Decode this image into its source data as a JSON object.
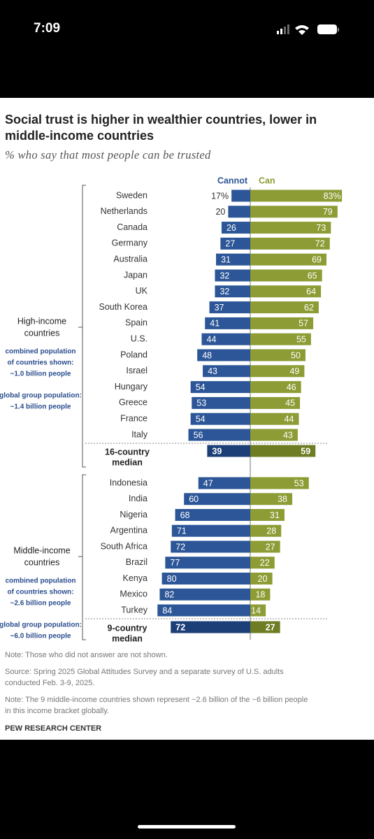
{
  "status_bar": {
    "time": "7:09"
  },
  "chart_data": {
    "type": "diverging_bar",
    "title": "Social trust is higher in wealthier countries, lower in middle-income countries",
    "subtitle": "% who say that most people can be trusted",
    "series": [
      {
        "name": "Cannot",
        "color": "#2c5697"
      },
      {
        "name": "Can",
        "color": "#8d9c34"
      }
    ],
    "groups": [
      {
        "label": [
          "High-income",
          "countries"
        ],
        "notes": [
          [
            "combined population",
            "of countries shown:",
            "~1.0 billion people"
          ],
          [
            "global group population:",
            "~1.4 billion people"
          ]
        ],
        "categories": [
          "Sweden",
          "Netherlands",
          "Canada",
          "Germany",
          "Australia",
          "Japan",
          "UK",
          "South Korea",
          "Spain",
          "U.S.",
          "Poland",
          "Israel",
          "Hungary",
          "Greece",
          "France",
          "Italy"
        ],
        "series": [
          {
            "values": [
              17,
              20,
              26,
              27,
              31,
              32,
              32,
              37,
              41,
              44,
              48,
              43,
              54,
              53,
              54,
              56
            ],
            "value_labels": [
              "17%",
              "20",
              "26",
              "27",
              "31",
              "32",
              "32",
              "37",
              "41",
              "44",
              "48",
              "43",
              "54",
              "53",
              "54",
              "56"
            ]
          },
          {
            "values": [
              83,
              79,
              73,
              72,
              69,
              65,
              64,
              62,
              57,
              55,
              50,
              49,
              46,
              45,
              44,
              43
            ],
            "value_labels": [
              "83%",
              "79",
              "73",
              "72",
              "69",
              "65",
              "64",
              "62",
              "57",
              "55",
              "50",
              "49",
              "46",
              "45",
              "44",
              "43"
            ]
          }
        ],
        "median": {
          "label": [
            "16-country",
            "median"
          ],
          "values": [
            39,
            59
          ],
          "colors": [
            "#1d3f77",
            "#6e7d24"
          ]
        }
      },
      {
        "label": [
          "Middle-income",
          "countries"
        ],
        "notes": [
          [
            "combined population",
            "of countries shown:",
            "~2.6 billion people"
          ],
          [
            "global group population:",
            "~6.0 billion people"
          ]
        ],
        "categories": [
          "Indonesia",
          "India",
          "Nigeria",
          "Argentina",
          "South Africa",
          "Brazil",
          "Kenya",
          "Mexico",
          "Turkey"
        ],
        "series": [
          {
            "values": [
              47,
              60,
              68,
              71,
              72,
              77,
              80,
              82,
              84
            ]
          },
          {
            "values": [
              53,
              38,
              31,
              28,
              27,
              22,
              20,
              18,
              14
            ]
          }
        ],
        "median": {
          "label": [
            "9-country",
            "median"
          ],
          "values": [
            72,
            27
          ],
          "colors": [
            "#1d3f77",
            "#6e7d24"
          ]
        }
      }
    ],
    "notes": [
      "Note: Those who did not answer are not shown.",
      "Source: Spring 2025 Global Attitudes Survey and a separate survey of U.S. adults conducted Feb. 3-9, 2025.",
      "Note: The 9 middle-income countries shown represent ~2.6 billion of the ~6 billion people in this income bracket globally."
    ],
    "credit": "PEW RESEARCH CENTER"
  }
}
